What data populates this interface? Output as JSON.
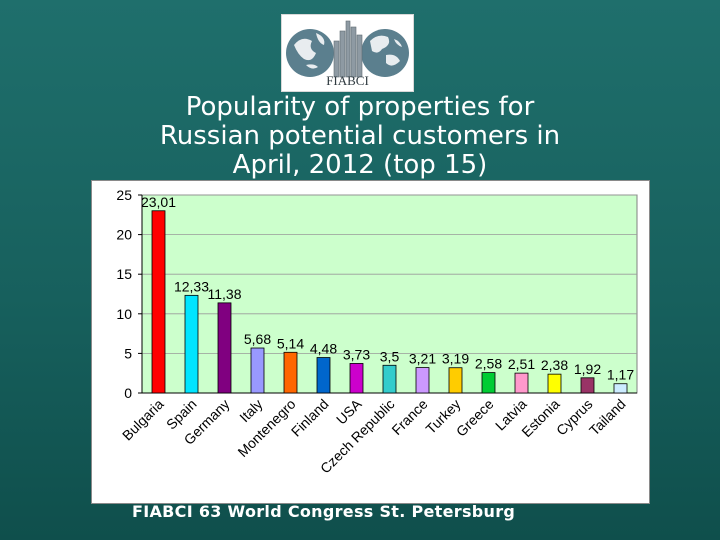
{
  "logo": {
    "text": "FIABCI"
  },
  "title_lines": [
    "Popularity of properties for",
    "Russian potential customers in",
    "April, 2012 (top 15)"
  ],
  "footer": "FIABCI 63 World Congress St. Petersburg",
  "chart_data": {
    "type": "bar",
    "title": "Popularity of properties for Russian potential customers in April, 2012 (top 15)",
    "categories": [
      "Bulgaria",
      "Spain",
      "Germany",
      "Italy",
      "Montenegro",
      "Finland",
      "USA",
      "Czech Republic",
      "France",
      "Turkey",
      "Greece",
      "Latvia",
      "Estonia",
      "Cyprus",
      "Tailand"
    ],
    "values": [
      23.01,
      12.33,
      11.38,
      5.68,
      5.14,
      4.48,
      3.73,
      3.5,
      3.21,
      3.19,
      2.58,
      2.51,
      2.38,
      1.92,
      1.17
    ],
    "value_labels": [
      "23,01",
      "12,33",
      "11,38",
      "5,68",
      "5,14",
      "4,48",
      "3,73",
      "3,5",
      "3,21",
      "3,19",
      "2,58",
      "2,51",
      "2,38",
      "1,92",
      "1,17"
    ],
    "colors": [
      "#ff0000",
      "#00e5ff",
      "#800080",
      "#9999ff",
      "#ff6600",
      "#0066cc",
      "#cc00cc",
      "#33cccc",
      "#cc99ff",
      "#ffcc00",
      "#00cc33",
      "#ff99cc",
      "#ffff00",
      "#993366",
      "#ccecff"
    ],
    "y_ticks": [
      0,
      5,
      10,
      15,
      20,
      25
    ],
    "ylim": [
      0,
      25
    ],
    "grid": true,
    "plot_background": "#ccffcc",
    "legend": "none"
  }
}
